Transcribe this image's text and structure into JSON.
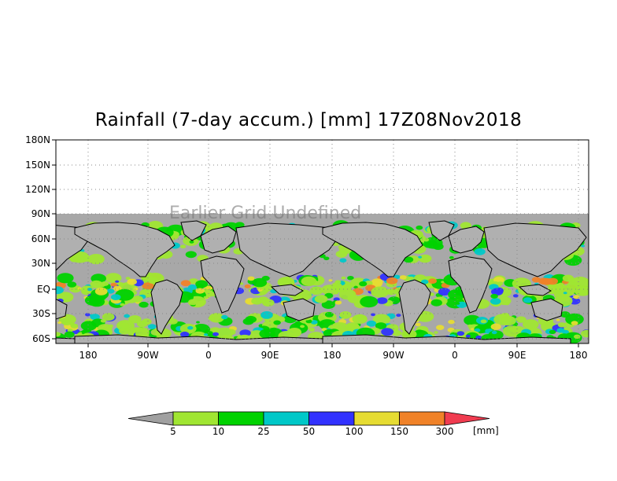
{
  "title": "Rainfall (7-day accum.) [mm] 17Z08Nov2018",
  "overlay_text": "Earlier Grid Undefined",
  "y_axis_labels": [
    "180N",
    "150N",
    "120N",
    "90N",
    "60N",
    "30N",
    "EQ",
    "30S",
    "60S"
  ],
  "x_axis_labels": [
    "180",
    "90W",
    "0",
    "90E",
    "180",
    "90W",
    "0",
    "90E",
    "180"
  ],
  "colorbar": {
    "unit_label": "[mm]",
    "tick_labels": [
      "5",
      "10",
      "25",
      "50",
      "100",
      "150",
      "300"
    ],
    "colors": [
      "#a0a0a0",
      "#a0e632",
      "#00d200",
      "#00c8c8",
      "#3232ff",
      "#e6dc32",
      "#f08228",
      "#f03c50"
    ]
  },
  "colors": {
    "ocean_bg": "#a8a8a8",
    "grid": "#999999",
    "coast": "#000000"
  }
}
